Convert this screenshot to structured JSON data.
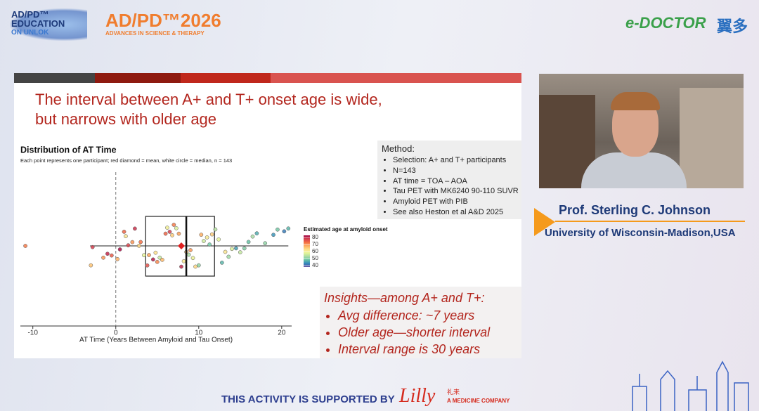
{
  "header": {
    "left_logo": [
      "AD/PD™",
      "EDUCATION",
      "ON UNLOK"
    ],
    "event_logo": "AD/PD™2026",
    "event_tagline": "ADVANCES IN SCIENCE & THERAPY",
    "right_logo": "e-DOCTOR",
    "right_logo_cn": "翼多"
  },
  "slide": {
    "title": [
      "The interval between A+ and T+ onset age is wide,",
      "but narrows with older age"
    ],
    "method_heading": "Method:",
    "method_items": [
      "Selection:  A+ and T+ participants",
      "N=143",
      "AT time = TOA – AOA",
      "Tau PET with MK6240 90-110 SUVR",
      "Amyloid PET with PIB",
      "See also Heston et al A&D 2025"
    ],
    "insights_heading": "Insights—among A+ and T+:",
    "insights_items": [
      "Avg difference: ~7 years",
      "Older age—shorter interval",
      "Interval range is 30 years"
    ]
  },
  "chart_data": {
    "type": "scatter",
    "title": "Distribution of AT Time",
    "subtitle": "Each point represents one participant; red diamond = mean, white circle = median, n = 143",
    "xlabel": "AT Time (Years Between Amyloid and Tau Onset)",
    "xlim": [
      -11.5,
      21.2
    ],
    "xticks": [
      -10,
      0,
      10,
      20
    ],
    "reference_x": 0,
    "values": [
      -10.9,
      -3.0,
      -2.8,
      -1.5,
      -1.0,
      -0.5,
      0.2,
      0.5,
      1.0,
      1.2,
      1.5,
      2.0,
      2.3,
      2.8,
      3.0,
      3.4,
      3.8,
      4.0,
      4.5,
      4.8,
      5.0,
      5.3,
      5.6,
      6.0,
      6.2,
      6.5,
      6.8,
      7.0,
      7.3,
      7.6,
      7.9,
      8.2,
      8.5,
      8.8,
      9.0,
      9.3,
      9.6,
      10.0,
      10.3,
      10.6,
      11.0,
      11.3,
      11.6,
      12.0,
      12.4,
      12.8,
      13.2,
      13.6,
      14.0,
      14.5,
      15.0,
      15.5,
      16.0,
      16.5,
      17.0,
      18.0,
      19.0,
      19.5,
      20.3,
      20.8
    ],
    "color_values": [
      72,
      66,
      78,
      70,
      80,
      75,
      68,
      82,
      74,
      62,
      77,
      70,
      79,
      64,
      73,
      58,
      76,
      69,
      81,
      63,
      71,
      55,
      67,
      74,
      60,
      78,
      65,
      72,
      57,
      69,
      80,
      62,
      66,
      53,
      70,
      59,
      64,
      51,
      68,
      56,
      61,
      49,
      65,
      54,
      58,
      47,
      62,
      52,
      57,
      45,
      55,
      50,
      48,
      53,
      46,
      51,
      44,
      49,
      42,
      47
    ],
    "colorbar_title": "Estimated age at amyloid onset",
    "colorbar_lim": [
      38,
      83
    ],
    "colorbar_ticks": [
      40,
      50,
      60,
      70,
      80
    ],
    "colormap": [
      "#5e4fa2",
      "#3288bd",
      "#66c2a5",
      "#abdda4",
      "#e6f598",
      "#fee08b",
      "#fdae61",
      "#f46d43",
      "#d53e4f",
      "#9e0142"
    ],
    "box": {
      "whisker_low": -3.1,
      "q1": 3.6,
      "median": 8.5,
      "q3": 11.9,
      "whisker_high": 20.8,
      "mean": 7.9
    }
  },
  "speaker": {
    "name": "Prof. Sterling C. Johnson",
    "affiliation": "University of Wisconsin-Madison,USA"
  },
  "footer": {
    "supported_by": "THIS ACTIVITY IS SUPPORTED BY",
    "sponsor": "Lilly",
    "sponsor_cn": "礼来",
    "sponsor_tagline": "A MEDICINE COMPANY"
  }
}
